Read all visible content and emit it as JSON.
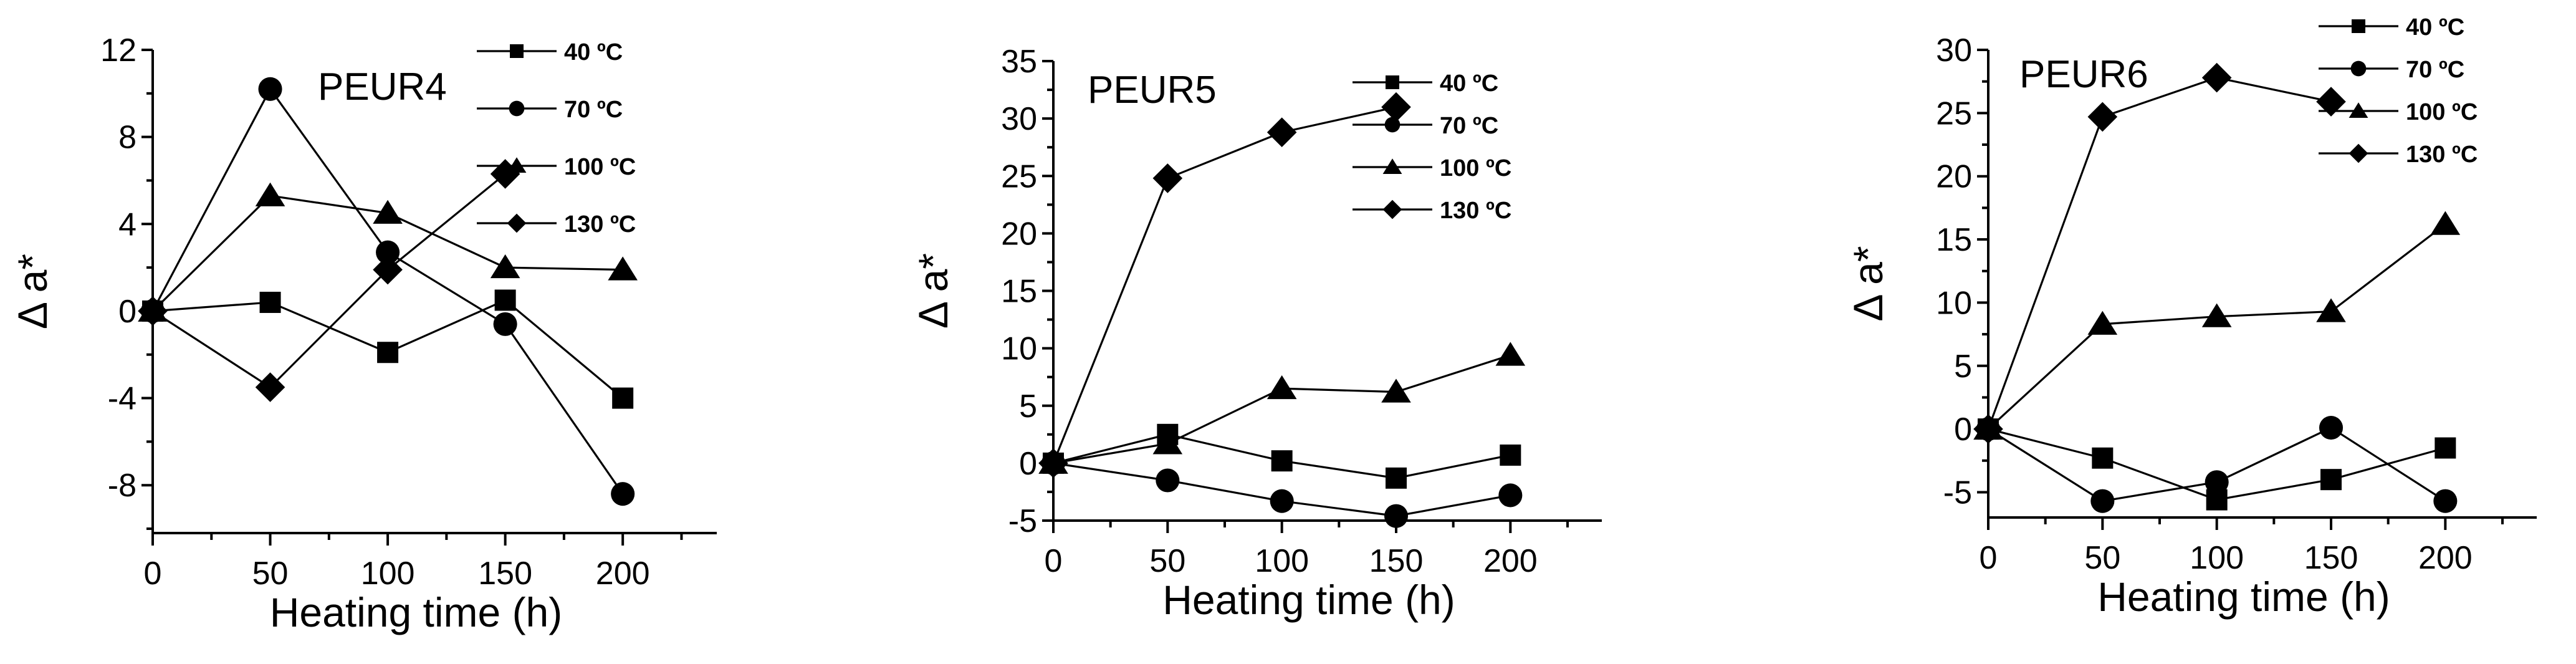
{
  "chart_data": [
    {
      "type": "line",
      "title": "PEUR4",
      "xlabel": "Heating time (h)",
      "ylabel": "Δ a*",
      "x": [
        0,
        50,
        100,
        150,
        200
      ],
      "xticks": [
        "0",
        "50",
        "100",
        "150",
        "200"
      ],
      "xlim": [
        0,
        240
      ],
      "yticks": [
        "12",
        "8",
        "4",
        "0",
        "-4",
        "-8"
      ],
      "ylim": [
        -10.2,
        12
      ],
      "legend": "top-right",
      "series": [
        {
          "name": "40 ºC",
          "marker": "square",
          "values": [
            0,
            0.4,
            -1.9,
            0.5,
            -4.0
          ]
        },
        {
          "name": "70 ºC",
          "marker": "circle",
          "values": [
            0,
            10.2,
            2.7,
            -0.6,
            -8.4
          ]
        },
        {
          "name": "100 ºC",
          "marker": "triangle",
          "values": [
            0,
            5.3,
            4.5,
            2.0,
            1.9
          ]
        },
        {
          "name": "130 ºC",
          "marker": "diamond",
          "values": [
            0,
            -3.5,
            1.9,
            6.3,
            null
          ]
        }
      ]
    },
    {
      "type": "line",
      "title": "PEUR5",
      "xlabel": "Heating time (h)",
      "ylabel": "Δ a*",
      "x": [
        0,
        50,
        100,
        150,
        200
      ],
      "xticks": [
        "0",
        "50",
        "100",
        "150",
        "200"
      ],
      "xlim": [
        0,
        240
      ],
      "yticks": [
        "35",
        "30",
        "25",
        "20",
        "15",
        "10",
        "5",
        "0",
        "-5"
      ],
      "ylim": [
        -5,
        35
      ],
      "legend": "top-right",
      "series": [
        {
          "name": "40 ºC",
          "marker": "square",
          "values": [
            0,
            2.5,
            0.2,
            -1.3,
            0.7
          ]
        },
        {
          "name": "70 ºC",
          "marker": "circle",
          "values": [
            0,
            -1.5,
            -3.3,
            -4.6,
            -2.8
          ]
        },
        {
          "name": "100 ºC",
          "marker": "triangle",
          "values": [
            0,
            1.7,
            6.5,
            6.2,
            9.4
          ]
        },
        {
          "name": "130 ºC",
          "marker": "diamond",
          "values": [
            0,
            24.8,
            28.8,
            31.0,
            null
          ]
        }
      ]
    },
    {
      "type": "line",
      "title": "PEUR6",
      "xlabel": "Heating time (h)",
      "ylabel": "Δ a*",
      "x": [
        0,
        50,
        100,
        150,
        200
      ],
      "xticks": [
        "0",
        "50",
        "100",
        "150",
        "200"
      ],
      "xlim": [
        0,
        240
      ],
      "yticks": [
        "30",
        "25",
        "20",
        "15",
        "10",
        "5",
        "0",
        "-5"
      ],
      "ylim": [
        -7,
        30
      ],
      "legend": "top-right",
      "series": [
        {
          "name": "40 ºC",
          "marker": "square",
          "values": [
            0,
            -2.3,
            -5.6,
            -4.0,
            -1.5
          ]
        },
        {
          "name": "70 ºC",
          "marker": "circle",
          "values": [
            0,
            -5.7,
            -4.2,
            0.1,
            -5.7
          ]
        },
        {
          "name": "100 ºC",
          "marker": "triangle",
          "values": [
            0,
            8.3,
            8.9,
            9.3,
            16.2
          ]
        },
        {
          "name": "130 ºC",
          "marker": "diamond",
          "values": [
            0,
            24.7,
            27.8,
            25.9,
            null
          ]
        }
      ]
    }
  ]
}
